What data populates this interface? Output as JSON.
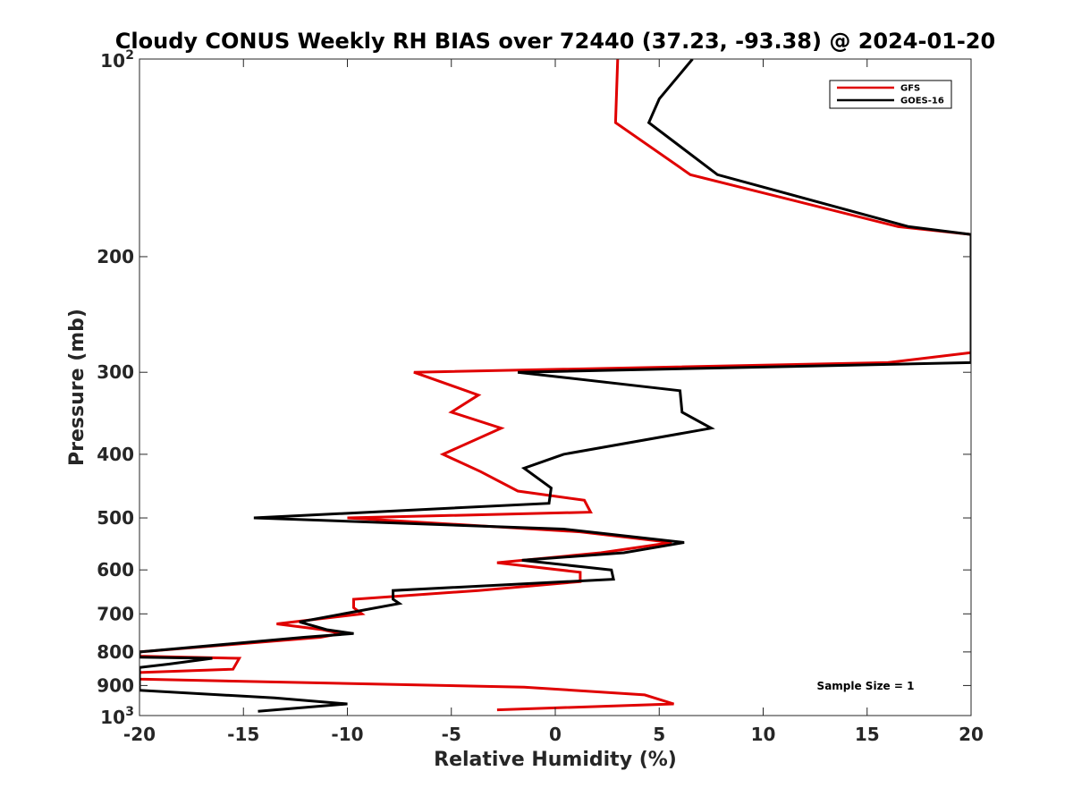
{
  "chart_data": {
    "type": "line",
    "title": "Cloudy CONUS Weekly RH BIAS over 72440 (37.23, -93.38) @ 2024-01-20",
    "xlabel": "Relative Humidity (%)",
    "ylabel": "Pressure (mb)",
    "xlim": [
      -20,
      20
    ],
    "ylim": [
      100,
      1000
    ],
    "yscale": "log",
    "y_reversed": true,
    "x_ticks": [
      "-20",
      "-15",
      "-10",
      "-5",
      "0",
      "5",
      "10",
      "15",
      "20"
    ],
    "y_ticks": [
      {
        "value": 100,
        "base": "10",
        "exp": "2"
      },
      {
        "value": 200,
        "label": "200"
      },
      {
        "value": 300,
        "label": "300"
      },
      {
        "value": 400,
        "label": "400"
      },
      {
        "value": 500,
        "label": "500"
      },
      {
        "value": 600,
        "label": "600"
      },
      {
        "value": 700,
        "label": "700"
      },
      {
        "value": 800,
        "label": "800"
      },
      {
        "value": 900,
        "label": "900"
      },
      {
        "value": 1000,
        "base": "10",
        "exp": "3"
      }
    ],
    "legend_position": "top-right",
    "grid": false,
    "annotation": "Sample Size = 1",
    "series": [
      {
        "name": "GFS",
        "color": "#e00000",
        "points": [
          [
            3.0,
            100
          ],
          [
            2.9,
            125
          ],
          [
            6.5,
            150
          ],
          [
            16.5,
            180
          ],
          [
            20.0,
            185
          ],
          [
            20.0,
            280
          ],
          [
            16.0,
            290
          ],
          [
            -6.8,
            300
          ],
          [
            -3.7,
            325
          ],
          [
            -5.0,
            345
          ],
          [
            -2.6,
            365
          ],
          [
            -5.4,
            400
          ],
          [
            -3.6,
            425
          ],
          [
            -1.8,
            455
          ],
          [
            1.4,
            470
          ],
          [
            1.7,
            490
          ],
          [
            -10.0,
            500
          ],
          [
            1.2,
            525
          ],
          [
            5.6,
            545
          ],
          [
            2.2,
            565
          ],
          [
            -2.8,
            585
          ],
          [
            1.2,
            605
          ],
          [
            1.2,
            625
          ],
          [
            -3.7,
            645
          ],
          [
            -9.7,
            665
          ],
          [
            -9.7,
            685
          ],
          [
            -9.3,
            700
          ],
          [
            -13.4,
            725
          ],
          [
            -11.2,
            740
          ],
          [
            -10.3,
            750
          ],
          [
            -11.3,
            760
          ],
          [
            -20.0,
            800
          ],
          [
            -20.0,
            812
          ],
          [
            -15.2,
            818
          ],
          [
            -15.5,
            850
          ],
          [
            -20.0,
            860
          ],
          [
            -20.0,
            880
          ],
          [
            -1.5,
            905
          ],
          [
            4.3,
            930
          ],
          [
            5.7,
            960
          ],
          [
            -2.8,
            980
          ]
        ]
      },
      {
        "name": "GOES-16",
        "color": "#000000",
        "points": [
          [
            6.6,
            100
          ],
          [
            5.0,
            115
          ],
          [
            4.5,
            125
          ],
          [
            7.8,
            150
          ],
          [
            17.0,
            180
          ],
          [
            20.0,
            185
          ],
          [
            20.0,
            290
          ],
          [
            -1.8,
            300
          ],
          [
            6.0,
            320
          ],
          [
            6.1,
            345
          ],
          [
            7.5,
            365
          ],
          [
            0.4,
            400
          ],
          [
            -1.5,
            420
          ],
          [
            -0.2,
            450
          ],
          [
            -0.3,
            475
          ],
          [
            -14.5,
            500
          ],
          [
            0.4,
            520
          ],
          [
            6.2,
            545
          ],
          [
            3.3,
            565
          ],
          [
            -1.6,
            580
          ],
          [
            2.7,
            600
          ],
          [
            2.8,
            620
          ],
          [
            -7.8,
            645
          ],
          [
            -7.8,
            665
          ],
          [
            -7.5,
            675
          ],
          [
            -12.3,
            720
          ],
          [
            -11.0,
            740
          ],
          [
            -9.7,
            750
          ],
          [
            -12.1,
            760
          ],
          [
            -20.0,
            800
          ],
          [
            -20.0,
            815
          ],
          [
            -16.5,
            818
          ],
          [
            -18.6,
            835
          ],
          [
            -20.0,
            845
          ],
          [
            -20.0,
            915
          ],
          [
            -13.5,
            940
          ],
          [
            -10.0,
            960
          ],
          [
            -14.3,
            985
          ]
        ]
      }
    ]
  }
}
